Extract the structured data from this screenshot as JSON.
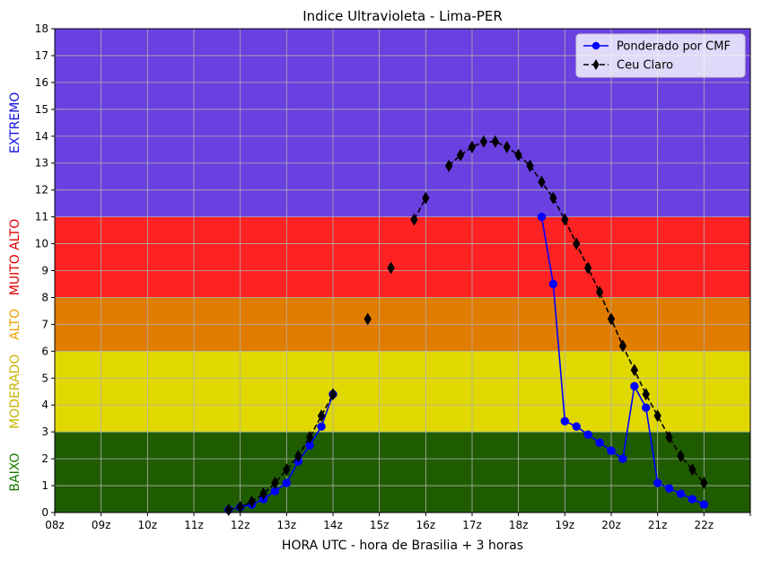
{
  "chart_data": {
    "type": "line",
    "title": "Indice Ultravioleta - Lima-PER",
    "xlabel": "HORA UTC - hora de Brasilia + 3 horas",
    "ylabel": "",
    "xlim": [
      8,
      23
    ],
    "ylim": [
      0,
      18
    ],
    "x_ticks": [
      {
        "value": 8,
        "label": "08z"
      },
      {
        "value": 9,
        "label": "09z"
      },
      {
        "value": 10,
        "label": "10z"
      },
      {
        "value": 11,
        "label": "11z"
      },
      {
        "value": 12,
        "label": "12z"
      },
      {
        "value": 13,
        "label": "13z"
      },
      {
        "value": 14,
        "label": "14z"
      },
      {
        "value": 15,
        "label": "15z"
      },
      {
        "value": 16,
        "label": "16z"
      },
      {
        "value": 17,
        "label": "17z"
      },
      {
        "value": 18,
        "label": "18z"
      },
      {
        "value": 19,
        "label": "19z"
      },
      {
        "value": 20,
        "label": "20z"
      },
      {
        "value": 21,
        "label": "21z"
      },
      {
        "value": 22,
        "label": "22z"
      },
      {
        "value": 23,
        "label": ""
      }
    ],
    "y_ticks": [
      0,
      1,
      2,
      3,
      4,
      5,
      6,
      7,
      8,
      9,
      10,
      11,
      12,
      13,
      14,
      15,
      16,
      17,
      18
    ],
    "grid": true,
    "legend_position": "top-right",
    "bands": [
      {
        "label": "BAIXO",
        "from": 0,
        "to": 3,
        "fill": "#1f5c00",
        "label_color": "#1a7a00"
      },
      {
        "label": "MODERADO",
        "from": 3,
        "to": 6,
        "fill": "#e0d800",
        "label_color": "#c8b400"
      },
      {
        "label": "ALTO",
        "from": 6,
        "to": 8,
        "fill": "#e07c00",
        "label_color": "#f0a000"
      },
      {
        "label": "MUITO ALTO",
        "from": 8,
        "to": 11,
        "fill": "#ff2222",
        "label_color": "#e00000"
      },
      {
        "label": "EXTREMO",
        "from": 11,
        "to": 18,
        "fill": "#6a40e0",
        "label_color": "#1010e0"
      }
    ],
    "series": [
      {
        "name": "Ponderado por CMF",
        "color": "#0000ff",
        "marker": "circle",
        "linestyle": "solid",
        "segments": [
          [
            [
              11.75,
              0.1
            ],
            [
              12.0,
              0.2
            ],
            [
              12.25,
              0.3
            ],
            [
              12.5,
              0.5
            ],
            [
              12.75,
              0.8
            ],
            [
              13.0,
              1.1
            ],
            [
              13.25,
              1.9
            ],
            [
              13.5,
              2.5
            ],
            [
              13.75,
              3.2
            ],
            [
              14.0,
              4.4
            ]
          ],
          [
            [
              18.5,
              11.0
            ],
            [
              18.75,
              8.5
            ],
            [
              19.0,
              3.4
            ],
            [
              19.25,
              3.2
            ],
            [
              19.5,
              2.9
            ],
            [
              19.75,
              2.6
            ],
            [
              20.0,
              2.3
            ],
            [
              20.25,
              2.0
            ],
            [
              20.5,
              4.7
            ],
            [
              20.75,
              3.9
            ],
            [
              21.0,
              1.1
            ],
            [
              21.25,
              0.9
            ],
            [
              21.5,
              0.7
            ],
            [
              21.75,
              0.5
            ],
            [
              22.0,
              0.3
            ]
          ]
        ]
      },
      {
        "name": "Ceu Claro",
        "color": "#000000",
        "marker": "thin-diamond",
        "linestyle": "dashed",
        "segments": [
          [
            [
              11.75,
              0.1
            ],
            [
              12.0,
              0.2
            ],
            [
              12.25,
              0.4
            ],
            [
              12.5,
              0.7
            ],
            [
              12.75,
              1.1
            ],
            [
              13.0,
              1.6
            ],
            [
              13.25,
              2.1
            ],
            [
              13.5,
              2.8
            ],
            [
              13.75,
              3.6
            ],
            [
              14.0,
              4.4
            ]
          ],
          [
            [
              14.75,
              7.2
            ]
          ],
          [
            [
              15.25,
              9.1
            ]
          ],
          [
            [
              15.75,
              10.9
            ],
            [
              16.0,
              11.7
            ]
          ],
          [
            [
              16.5,
              12.9
            ],
            [
              16.75,
              13.3
            ],
            [
              17.0,
              13.6
            ],
            [
              17.25,
              13.8
            ],
            [
              17.5,
              13.8
            ],
            [
              17.75,
              13.6
            ],
            [
              18.0,
              13.3
            ],
            [
              18.25,
              12.9
            ],
            [
              18.5,
              12.3
            ],
            [
              18.75,
              11.7
            ],
            [
              19.0,
              10.9
            ],
            [
              19.25,
              10.0
            ],
            [
              19.5,
              9.1
            ],
            [
              19.75,
              8.2
            ],
            [
              20.0,
              7.2
            ],
            [
              20.25,
              6.2
            ],
            [
              20.5,
              5.3
            ],
            [
              20.75,
              4.4
            ],
            [
              21.0,
              3.6
            ],
            [
              21.25,
              2.8
            ],
            [
              21.5,
              2.1
            ],
            [
              21.75,
              1.6
            ],
            [
              22.0,
              1.1
            ]
          ]
        ]
      }
    ]
  }
}
